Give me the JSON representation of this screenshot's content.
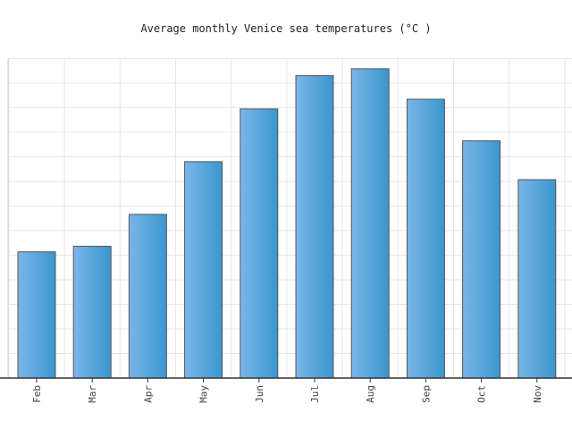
{
  "chart_data": {
    "type": "bar",
    "title": "Average monthly Venice sea temperatures (°C )",
    "xlabel": "",
    "ylabel": "",
    "categories": [
      "Feb",
      "Mar",
      "Apr",
      "May",
      "Jun",
      "Jul",
      "Aug",
      "Sep",
      "Oct",
      "Nov"
    ],
    "values": [
      9.1,
      9.5,
      11.8,
      15.6,
      19.4,
      21.8,
      22.3,
      20.1,
      17.1,
      14.3
    ],
    "ylim": [
      0,
      23
    ],
    "grid": true,
    "legend": "none",
    "colors": {
      "bar_light": "#7ab6e8",
      "bar_dark": "#3a96cf",
      "bar_stroke": "#555555",
      "grid": "#e6e6e6",
      "axis": "#333333"
    }
  }
}
